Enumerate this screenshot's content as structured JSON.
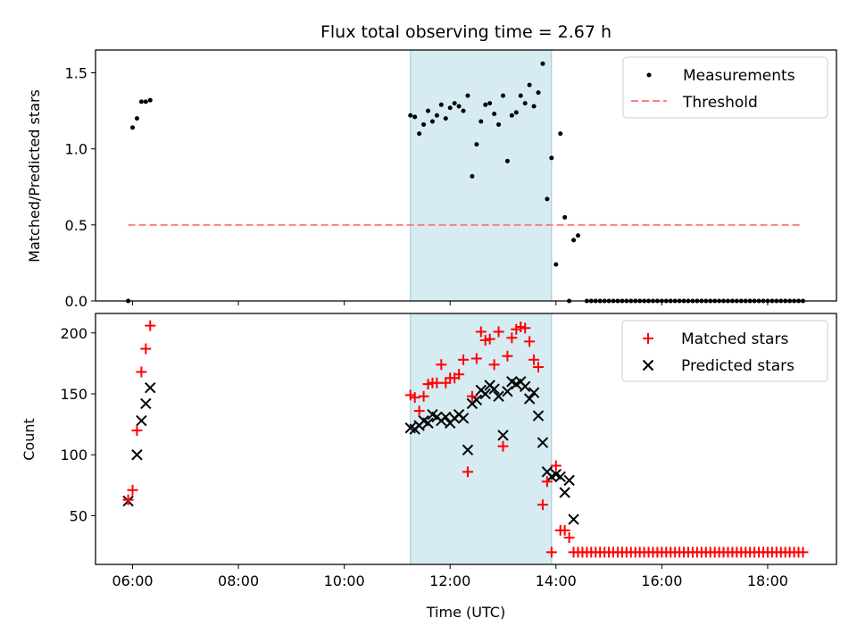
{
  "figure": {
    "title": "Flux total observing time = 2.67 h"
  },
  "colors": {
    "measurement": "#000000",
    "threshold": "#ff7f7f",
    "matched": "#ff0000",
    "predicted": "#000000",
    "shade": "#add8e6"
  },
  "chart_data": [
    {
      "type": "scatter",
      "panel": "top",
      "title": "Flux total observing time = 2.67 h",
      "xlabel": "",
      "ylabel": "Matched/Predicted stars",
      "x_is_time_of_day": true,
      "xlim": [
        "05:18",
        "19:18"
      ],
      "ylim": [
        0,
        1.65
      ],
      "yticks": [
        0.0,
        0.5,
        1.0,
        1.5
      ],
      "xticks": [
        "06:00",
        "08:00",
        "10:00",
        "12:00",
        "14:00",
        "16:00",
        "18:00"
      ],
      "shaded_span": [
        "11:15",
        "13:55"
      ],
      "legend_position": "top-right",
      "grid": false,
      "series": [
        {
          "name": "Measurements",
          "kind": "dots",
          "points": [
            [
              "05:55",
              0.0
            ],
            [
              "06:00",
              1.14
            ],
            [
              "06:05",
              1.2
            ],
            [
              "06:10",
              1.31
            ],
            [
              "06:15",
              1.31
            ],
            [
              "06:20",
              1.32
            ],
            [
              "11:15",
              1.22
            ],
            [
              "11:20",
              1.21
            ],
            [
              "11:25",
              1.1
            ],
            [
              "11:30",
              1.16
            ],
            [
              "11:35",
              1.25
            ],
            [
              "11:40",
              1.18
            ],
            [
              "11:45",
              1.22
            ],
            [
              "11:50",
              1.29
            ],
            [
              "11:55",
              1.2
            ],
            [
              "12:00",
              1.27
            ],
            [
              "12:05",
              1.3
            ],
            [
              "12:10",
              1.28
            ],
            [
              "12:15",
              1.25
            ],
            [
              "12:20",
              1.35
            ],
            [
              "12:25",
              0.82
            ],
            [
              "12:30",
              1.03
            ],
            [
              "12:35",
              1.18
            ],
            [
              "12:40",
              1.29
            ],
            [
              "12:45",
              1.3
            ],
            [
              "12:50",
              1.23
            ],
            [
              "12:55",
              1.16
            ],
            [
              "13:00",
              1.35
            ],
            [
              "13:05",
              0.92
            ],
            [
              "13:10",
              1.22
            ],
            [
              "13:15",
              1.24
            ],
            [
              "13:20",
              1.35
            ],
            [
              "13:25",
              1.3
            ],
            [
              "13:30",
              1.42
            ],
            [
              "13:35",
              1.28
            ],
            [
              "13:40",
              1.37
            ],
            [
              "13:45",
              1.56
            ],
            [
              "13:50",
              0.67
            ],
            [
              "13:55",
              0.94
            ],
            [
              "14:00",
              0.24
            ],
            [
              "14:05",
              1.1
            ],
            [
              "14:10",
              0.55
            ],
            [
              "14:15",
              0.0
            ],
            [
              "14:20",
              0.4
            ],
            [
              "14:25",
              0.43
            ],
            [
              "14:35",
              0.0
            ],
            [
              "14:40",
              0.0
            ],
            [
              "14:45",
              0.0
            ],
            [
              "14:50",
              0.0
            ],
            [
              "14:55",
              0.0
            ],
            [
              "15:00",
              0.0
            ],
            [
              "15:05",
              0.0
            ],
            [
              "15:10",
              0.0
            ],
            [
              "15:15",
              0.0
            ],
            [
              "15:20",
              0.0
            ],
            [
              "15:25",
              0.0
            ],
            [
              "15:30",
              0.0
            ],
            [
              "15:35",
              0.0
            ],
            [
              "15:40",
              0.0
            ],
            [
              "15:45",
              0.0
            ],
            [
              "15:50",
              0.0
            ],
            [
              "15:55",
              0.0
            ],
            [
              "16:00",
              0.0
            ],
            [
              "16:05",
              0.0
            ],
            [
              "16:10",
              0.0
            ],
            [
              "16:15",
              0.0
            ],
            [
              "16:20",
              0.0
            ],
            [
              "16:25",
              0.0
            ],
            [
              "16:30",
              0.0
            ],
            [
              "16:35",
              0.0
            ],
            [
              "16:40",
              0.0
            ],
            [
              "16:45",
              0.0
            ],
            [
              "16:50",
              0.0
            ],
            [
              "16:55",
              0.0
            ],
            [
              "17:00",
              0.0
            ],
            [
              "17:05",
              0.0
            ],
            [
              "17:10",
              0.0
            ],
            [
              "17:15",
              0.0
            ],
            [
              "17:20",
              0.0
            ],
            [
              "17:25",
              0.0
            ],
            [
              "17:30",
              0.0
            ],
            [
              "17:35",
              0.0
            ],
            [
              "17:40",
              0.0
            ],
            [
              "17:45",
              0.0
            ],
            [
              "17:50",
              0.0
            ],
            [
              "17:55",
              0.0
            ],
            [
              "18:00",
              0.0
            ],
            [
              "18:05",
              0.0
            ],
            [
              "18:10",
              0.0
            ],
            [
              "18:15",
              0.0
            ],
            [
              "18:20",
              0.0
            ],
            [
              "18:25",
              0.0
            ],
            [
              "18:30",
              0.0
            ],
            [
              "18:35",
              0.0
            ],
            [
              "18:40",
              0.0
            ]
          ]
        },
        {
          "name": "Threshold",
          "kind": "dashed-line",
          "points": [
            [
              "05:55",
              0.5
            ],
            [
              "18:40",
              0.5
            ]
          ]
        }
      ]
    },
    {
      "type": "scatter",
      "panel": "bottom",
      "xlabel": "Time (UTC)",
      "ylabel": "Count",
      "x_is_time_of_day": true,
      "xlim": [
        "05:18",
        "19:18"
      ],
      "ylim": [
        10,
        216
      ],
      "yticks": [
        50,
        100,
        150,
        200
      ],
      "xticks": [
        "06:00",
        "08:00",
        "10:00",
        "12:00",
        "14:00",
        "16:00",
        "18:00"
      ],
      "shaded_span": [
        "11:15",
        "13:55"
      ],
      "legend_position": "top-right",
      "grid": false,
      "series": [
        {
          "name": "Matched stars",
          "kind": "plus",
          "points": [
            [
              "05:55",
              63
            ],
            [
              "06:00",
              71
            ],
            [
              "06:05",
              120
            ],
            [
              "06:10",
              168
            ],
            [
              "06:15",
              187
            ],
            [
              "06:20",
              206
            ],
            [
              "11:15",
              149
            ],
            [
              "11:20",
              147
            ],
            [
              "11:25",
              136
            ],
            [
              "11:30",
              148
            ],
            [
              "11:35",
              158
            ],
            [
              "11:40",
              159
            ],
            [
              "11:45",
              159
            ],
            [
              "11:50",
              174
            ],
            [
              "11:55",
              159
            ],
            [
              "12:00",
              163
            ],
            [
              "12:05",
              163
            ],
            [
              "12:10",
              166
            ],
            [
              "12:15",
              178
            ],
            [
              "12:20",
              86
            ],
            [
              "12:25",
              148
            ],
            [
              "12:30",
              179
            ],
            [
              "12:35",
              201
            ],
            [
              "12:40",
              194
            ],
            [
              "12:45",
              195
            ],
            [
              "12:50",
              174
            ],
            [
              "12:55",
              201
            ],
            [
              "13:00",
              107
            ],
            [
              "13:05",
              181
            ],
            [
              "13:10",
              196
            ],
            [
              "13:15",
              203
            ],
            [
              "13:20",
              205
            ],
            [
              "13:25",
              204
            ],
            [
              "13:30",
              193
            ],
            [
              "13:35",
              178
            ],
            [
              "13:40",
              172
            ],
            [
              "13:45",
              59
            ],
            [
              "13:50",
              78
            ],
            [
              "13:55",
              20
            ],
            [
              "14:00",
              91
            ],
            [
              "14:05",
              38
            ],
            [
              "14:10",
              38
            ],
            [
              "14:15",
              32
            ],
            [
              "14:20",
              20
            ],
            [
              "14:25",
              20
            ],
            [
              "14:30",
              20
            ],
            [
              "14:35",
              20
            ],
            [
              "14:40",
              20
            ],
            [
              "14:45",
              20
            ],
            [
              "14:50",
              20
            ],
            [
              "14:55",
              20
            ],
            [
              "15:00",
              20
            ],
            [
              "15:05",
              20
            ],
            [
              "15:10",
              20
            ],
            [
              "15:15",
              20
            ],
            [
              "15:20",
              20
            ],
            [
              "15:25",
              20
            ],
            [
              "15:30",
              20
            ],
            [
              "15:35",
              20
            ],
            [
              "15:40",
              20
            ],
            [
              "15:45",
              20
            ],
            [
              "15:50",
              20
            ],
            [
              "15:55",
              20
            ],
            [
              "16:00",
              20
            ],
            [
              "16:05",
              20
            ],
            [
              "16:10",
              20
            ],
            [
              "16:15",
              20
            ],
            [
              "16:20",
              20
            ],
            [
              "16:25",
              20
            ],
            [
              "16:30",
              20
            ],
            [
              "16:35",
              20
            ],
            [
              "16:40",
              20
            ],
            [
              "16:45",
              20
            ],
            [
              "16:50",
              20
            ],
            [
              "16:55",
              20
            ],
            [
              "17:00",
              20
            ],
            [
              "17:05",
              20
            ],
            [
              "17:10",
              20
            ],
            [
              "17:15",
              20
            ],
            [
              "17:20",
              20
            ],
            [
              "17:25",
              20
            ],
            [
              "17:30",
              20
            ],
            [
              "17:35",
              20
            ],
            [
              "17:40",
              20
            ],
            [
              "17:45",
              20
            ],
            [
              "17:50",
              20
            ],
            [
              "17:55",
              20
            ],
            [
              "18:00",
              20
            ],
            [
              "18:05",
              20
            ],
            [
              "18:10",
              20
            ],
            [
              "18:15",
              20
            ],
            [
              "18:20",
              20
            ],
            [
              "18:25",
              20
            ],
            [
              "18:30",
              20
            ],
            [
              "18:35",
              20
            ],
            [
              "18:40",
              20
            ]
          ]
        },
        {
          "name": "Predicted stars",
          "kind": "cross",
          "points": [
            [
              "05:55",
              62
            ],
            [
              "06:05",
              100
            ],
            [
              "06:10",
              128
            ],
            [
              "06:15",
              142
            ],
            [
              "06:20",
              155
            ],
            [
              "11:15",
              122
            ],
            [
              "11:20",
              121
            ],
            [
              "11:25",
              124
            ],
            [
              "11:30",
              128
            ],
            [
              "11:35",
              126
            ],
            [
              "11:40",
              133
            ],
            [
              "11:45",
              131
            ],
            [
              "11:50",
              128
            ],
            [
              "11:55",
              131
            ],
            [
              "12:00",
              126
            ],
            [
              "12:05",
              130
            ],
            [
              "12:10",
              133
            ],
            [
              "12:15",
              130
            ],
            [
              "12:20",
              104
            ],
            [
              "12:25",
              142
            ],
            [
              "12:30",
              145
            ],
            [
              "12:35",
              153
            ],
            [
              "12:40",
              150
            ],
            [
              "12:45",
              157
            ],
            [
              "12:50",
              154
            ],
            [
              "12:55",
              148
            ],
            [
              "13:00",
              116
            ],
            [
              "13:05",
              152
            ],
            [
              "13:10",
              160
            ],
            [
              "13:15",
              158
            ],
            [
              "13:20",
              160
            ],
            [
              "13:25",
              156
            ],
            [
              "13:30",
              146
            ],
            [
              "13:35",
              151
            ],
            [
              "13:40",
              132
            ],
            [
              "13:45",
              110
            ],
            [
              "13:50",
              86
            ],
            [
              "13:55",
              82
            ],
            [
              "14:00",
              84
            ],
            [
              "14:05",
              82
            ],
            [
              "14:10",
              69
            ],
            [
              "14:15",
              79
            ],
            [
              "14:20",
              47
            ]
          ]
        }
      ]
    }
  ]
}
